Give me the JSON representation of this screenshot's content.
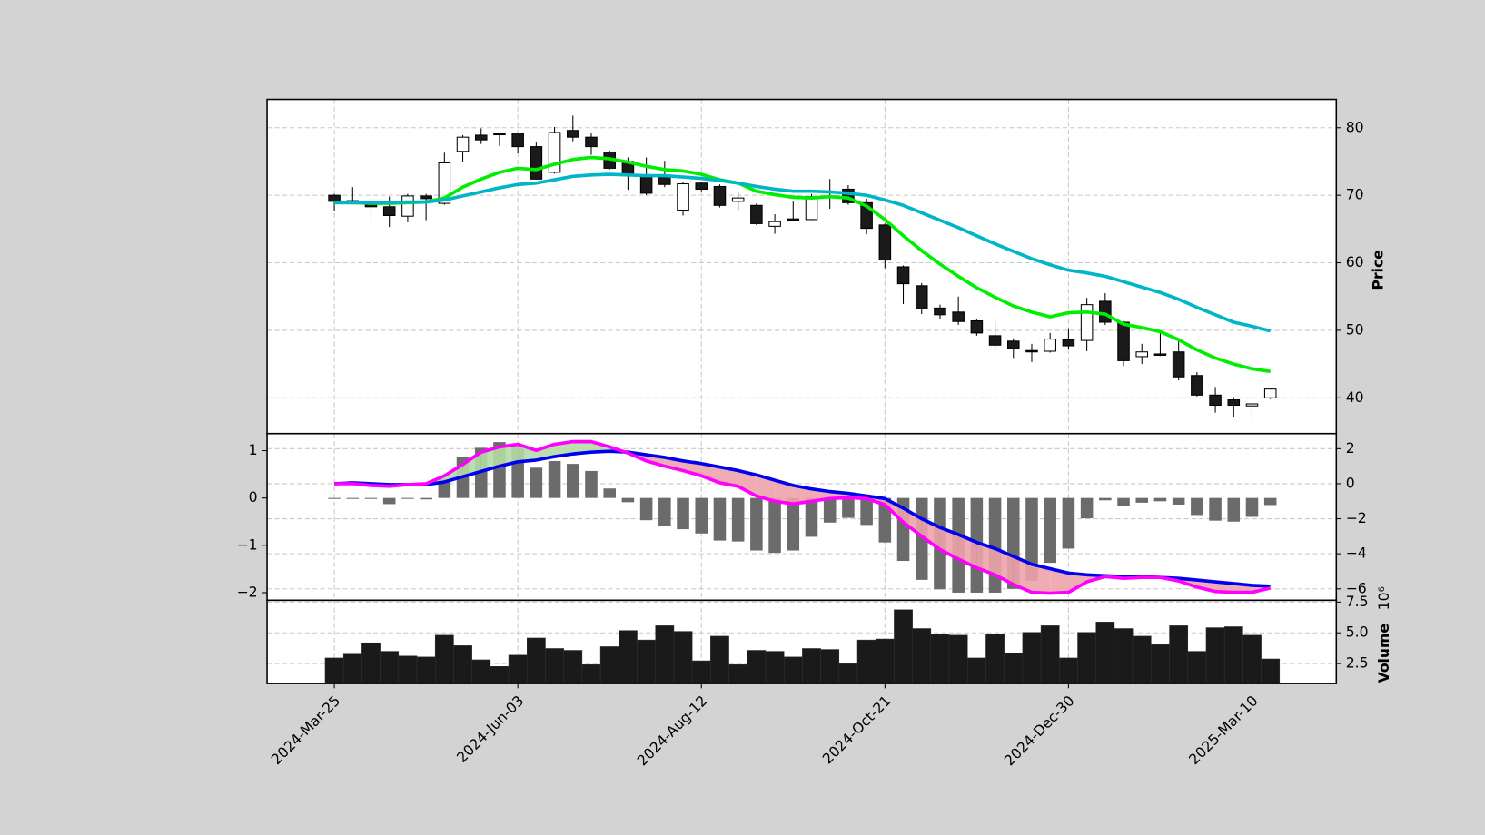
{
  "chart_data": [
    {
      "type": "candlestick",
      "ylabel": "Price",
      "ylim": [
        34.7,
        84.2
      ],
      "yticks": [
        40,
        50,
        60,
        70,
        80
      ],
      "grid": true,
      "up_color": "#ffffff",
      "down_color": "#1a1a1a",
      "open": [
        70.0,
        69.2,
        68.6,
        68.3,
        66.9,
        69.9,
        68.8,
        76.5,
        78.9,
        79.1,
        79.2,
        77.2,
        73.4,
        79.6,
        78.6,
        76.4,
        75.0,
        72.8,
        72.8,
        67.8,
        71.8,
        71.3,
        69.1,
        68.5,
        65.4,
        66.5,
        66.4,
        69.9,
        70.9,
        68.9,
        65.6,
        59.4,
        56.6,
        53.3,
        52.7,
        51.4,
        49.2,
        48.4,
        47.0,
        46.9,
        48.6,
        48.5,
        54.3,
        51.2,
        46.1,
        46.5,
        46.8,
        43.3,
        40.4,
        39.7,
        38.8,
        40.0
      ],
      "high": [
        70.2,
        71.2,
        69.5,
        69.8,
        70.2,
        70.2,
        76.3,
        78.9,
        79.9,
        79.3,
        79.3,
        77.8,
        80.1,
        81.8,
        79.2,
        76.6,
        75.6,
        75.6,
        75.1,
        72.0,
        72.0,
        71.6,
        70.5,
        68.8,
        67.2,
        69.2,
        70.2,
        72.4,
        71.5,
        69.5,
        65.8,
        59.6,
        57.0,
        53.8,
        55.0,
        51.6,
        51.3,
        48.8,
        48.0,
        49.6,
        50.3,
        54.8,
        55.5,
        51.4,
        48.0,
        49.8,
        48.4,
        43.8,
        41.6,
        40.1,
        39.4,
        41.4
      ],
      "low": [
        67.6,
        69.0,
        66.1,
        65.3,
        66.0,
        66.3,
        68.6,
        75.0,
        77.6,
        77.3,
        76.2,
        72.3,
        73.2,
        78.0,
        76.0,
        73.8,
        70.8,
        70.0,
        71.2,
        67.0,
        70.6,
        68.2,
        67.8,
        65.6,
        64.3,
        66.2,
        66.3,
        68.0,
        68.6,
        64.2,
        59.2,
        53.9,
        52.4,
        51.6,
        50.8,
        49.2,
        47.3,
        45.9,
        45.3,
        46.7,
        47.2,
        46.9,
        50.8,
        44.7,
        45.0,
        46.2,
        42.6,
        40.2,
        37.8,
        37.2,
        36.6,
        39.8
      ],
      "close": [
        69.1,
        69.1,
        68.3,
        67.0,
        69.9,
        69.5,
        74.8,
        78.6,
        78.2,
        79.0,
        77.2,
        72.4,
        79.3,
        78.6,
        77.2,
        74.0,
        73.0,
        70.3,
        71.6,
        71.7,
        70.9,
        68.5,
        69.6,
        65.8,
        66.1,
        66.3,
        69.8,
        69.8,
        68.9,
        65.1,
        60.4,
        56.9,
        53.2,
        52.3,
        51.3,
        49.6,
        47.8,
        47.3,
        46.8,
        48.7,
        47.7,
        53.8,
        51.2,
        45.5,
        46.8,
        46.3,
        43.1,
        40.4,
        38.9,
        38.9,
        39.1,
        41.3
      ],
      "moving_averages": [
        {
          "color": "#00ee00",
          "values": [
            68.9,
            68.9,
            68.8,
            68.8,
            68.9,
            69.0,
            69.6,
            71.2,
            72.4,
            73.4,
            74.0,
            73.8,
            74.6,
            75.3,
            75.6,
            75.4,
            74.9,
            74.3,
            73.8,
            73.6,
            73.1,
            72.3,
            71.8,
            70.6,
            70.1,
            69.7,
            69.6,
            69.8,
            69.6,
            68.4,
            66.4,
            64.0,
            61.8,
            59.8,
            58.0,
            56.3,
            54.9,
            53.6,
            52.7,
            52.0,
            52.6,
            52.7,
            52.4,
            50.9,
            50.4,
            49.8,
            48.6,
            47.1,
            45.9,
            45.0,
            44.3,
            43.9
          ]
        },
        {
          "color": "#00b5c8",
          "values": [
            68.9,
            68.9,
            68.9,
            68.9,
            69.0,
            69.0,
            69.3,
            69.9,
            70.5,
            71.1,
            71.6,
            71.8,
            72.3,
            72.8,
            73.0,
            73.1,
            73.0,
            72.9,
            72.9,
            72.7,
            72.5,
            72.2,
            71.8,
            71.3,
            70.9,
            70.6,
            70.6,
            70.5,
            70.3,
            70.0,
            69.3,
            68.5,
            67.4,
            66.3,
            65.2,
            64.0,
            62.8,
            61.7,
            60.6,
            59.7,
            58.9,
            58.5,
            58.0,
            57.2,
            56.4,
            55.6,
            54.6,
            53.4,
            52.3,
            51.2,
            50.6,
            49.9
          ]
        }
      ]
    },
    {
      "type": "macd",
      "grid": true,
      "ylim": [
        -2.16,
        1.36
      ],
      "yticks": [
        {
          "value": -2,
          "label": "−2"
        },
        {
          "value": -1,
          "label": "−1"
        },
        0,
        1
      ],
      "y2lim": [
        -6.65,
        2.86
      ],
      "y2ticks": [
        {
          "value": -6,
          "label": "−6"
        },
        {
          "value": -4,
          "label": "−4"
        },
        {
          "value": -2,
          "label": "−2"
        },
        0,
        2
      ],
      "histogram": {
        "color": "#6b6b6b",
        "values": [
          0.0,
          -0.01,
          -0.02,
          -0.13,
          0.0,
          -0.03,
          0.4,
          0.86,
          1.06,
          1.18,
          1.12,
          0.64,
          0.78,
          0.72,
          0.57,
          0.2,
          -0.09,
          -0.47,
          -0.6,
          -0.66,
          -0.75,
          -0.9,
          -0.92,
          -1.11,
          -1.16,
          -1.11,
          -0.82,
          -0.52,
          -0.42,
          -0.57,
          -0.94,
          -1.33,
          -1.73,
          -1.93,
          -2.0,
          -2.0,
          -2.0,
          -1.92,
          -1.75,
          -1.37,
          -1.07,
          -0.43,
          -0.05,
          -0.17,
          -0.1,
          -0.07,
          -0.14,
          -0.36,
          -0.48,
          -0.5,
          -0.4,
          -0.15
        ]
      },
      "fill_colors": {
        "above": "#b4dca6",
        "below": "#eea3ab"
      },
      "series": [
        {
          "color": "#0000ee",
          "axis": "y2",
          "values": [
            0.0,
            0.05,
            0.0,
            -0.05,
            -0.05,
            -0.05,
            0.1,
            0.4,
            0.7,
            1.0,
            1.25,
            1.35,
            1.55,
            1.7,
            1.8,
            1.85,
            1.8,
            1.65,
            1.5,
            1.3,
            1.15,
            0.95,
            0.75,
            0.5,
            0.2,
            -0.1,
            -0.3,
            -0.45,
            -0.55,
            -0.7,
            -0.85,
            -1.4,
            -2.0,
            -2.5,
            -2.9,
            -3.35,
            -3.7,
            -4.15,
            -4.6,
            -4.85,
            -5.1,
            -5.2,
            -5.25,
            -5.3,
            -5.3,
            -5.35,
            -5.4,
            -5.5,
            -5.6,
            -5.7,
            -5.8,
            -5.85
          ]
        },
        {
          "color": "#ff00ff",
          "axis": "y2",
          "values": [
            0.0,
            0.0,
            -0.1,
            -0.15,
            -0.05,
            0.0,
            0.45,
            1.1,
            1.8,
            2.1,
            2.25,
            1.9,
            2.25,
            2.4,
            2.4,
            2.1,
            1.75,
            1.3,
            1.0,
            0.75,
            0.45,
            0.05,
            -0.15,
            -0.7,
            -1.0,
            -1.15,
            -1.0,
            -0.85,
            -0.8,
            -0.85,
            -1.2,
            -2.2,
            -3.0,
            -3.75,
            -4.3,
            -4.8,
            -5.2,
            -5.75,
            -6.2,
            -6.25,
            -6.2,
            -5.6,
            -5.3,
            -5.4,
            -5.35,
            -5.35,
            -5.55,
            -5.9,
            -6.15,
            -6.2,
            -6.2,
            -5.95
          ]
        }
      ]
    },
    {
      "type": "bar",
      "ylabel": "Volume",
      "offset_label": "10⁶",
      "color": "#1a1a1a",
      "grid": true,
      "ylim": [
        880000,
        7650000
      ],
      "yticks": [
        {
          "value": 2500000,
          "label": "2.5"
        },
        {
          "value": 5000000,
          "label": "5.0"
        },
        {
          "value": 7500000,
          "label": "7.5"
        }
      ],
      "categories": [
        "2024-Mar-25",
        null,
        null,
        null,
        null,
        null,
        null,
        null,
        null,
        null,
        "2024-Jun-03",
        null,
        null,
        null,
        null,
        null,
        null,
        null,
        null,
        null,
        "2024-Aug-12",
        null,
        null,
        null,
        null,
        null,
        null,
        null,
        null,
        null,
        "2024-Oct-21",
        null,
        null,
        null,
        null,
        null,
        null,
        null,
        null,
        null,
        "2024-Dec-30",
        null,
        null,
        null,
        null,
        null,
        null,
        null,
        null,
        null,
        "2025-Mar-10",
        null
      ],
      "values": [
        2960000,
        3270000,
        4190000,
        3500000,
        3120000,
        3040000,
        4810000,
        3960000,
        2810000,
        2270000,
        3190000,
        4580000,
        3730000,
        3580000,
        2420000,
        3880000,
        5190000,
        4420000,
        5580000,
        5120000,
        2730000,
        4730000,
        2420000,
        3580000,
        3500000,
        3040000,
        3730000,
        3650000,
        2500000,
        4420000,
        4500000,
        6880000,
        5350000,
        4880000,
        4810000,
        2960000,
        4880000,
        3350000,
        5040000,
        5580000,
        2960000,
        5040000,
        5880000,
        5350000,
        4730000,
        4040000,
        5580000,
        3500000,
        5420000,
        5500000,
        4810000,
        2880000
      ]
    }
  ]
}
